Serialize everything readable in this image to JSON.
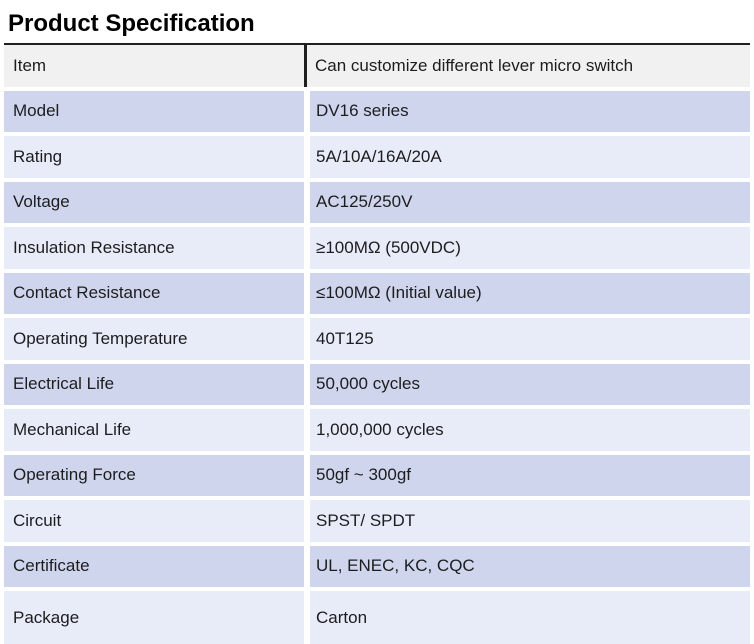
{
  "title": "Product Specification",
  "table": {
    "header": {
      "label": "Item",
      "value": "Can customize different lever micro switch"
    },
    "rows": [
      {
        "label": "Model",
        "value": "DV16 series"
      },
      {
        "label": "Rating",
        "value": "5A/10A/16A/20A"
      },
      {
        "label": "Voltage",
        "value": "AC125/250V"
      },
      {
        "label": "Insulation Resistance",
        "value": "≥100MΩ (500VDC)"
      },
      {
        "label": "Contact Resistance",
        "value": "≤100MΩ (Initial value)"
      },
      {
        "label": "Operating Temperature",
        "value": "40T125"
      },
      {
        "label": "Electrical Life",
        "value": "50,000 cycles"
      },
      {
        "label": "Mechanical Life",
        "value": "1,000,000 cycles"
      },
      {
        "label": "Operating Force",
        "value": "50gf ~ 300gf"
      },
      {
        "label": "Circuit",
        "value": "SPST/ SPDT"
      },
      {
        "label": "Certificate",
        "value": "UL, ENEC, KC, CQC"
      },
      {
        "label": "Package",
        "value": "Carton"
      }
    ]
  },
  "colors": {
    "row_dark": "#cfd5ec",
    "row_light": "#e8ebf8",
    "header_bg": "#f1f1f2",
    "rule": "#1f1f1f",
    "text": "#1d1d1f"
  }
}
